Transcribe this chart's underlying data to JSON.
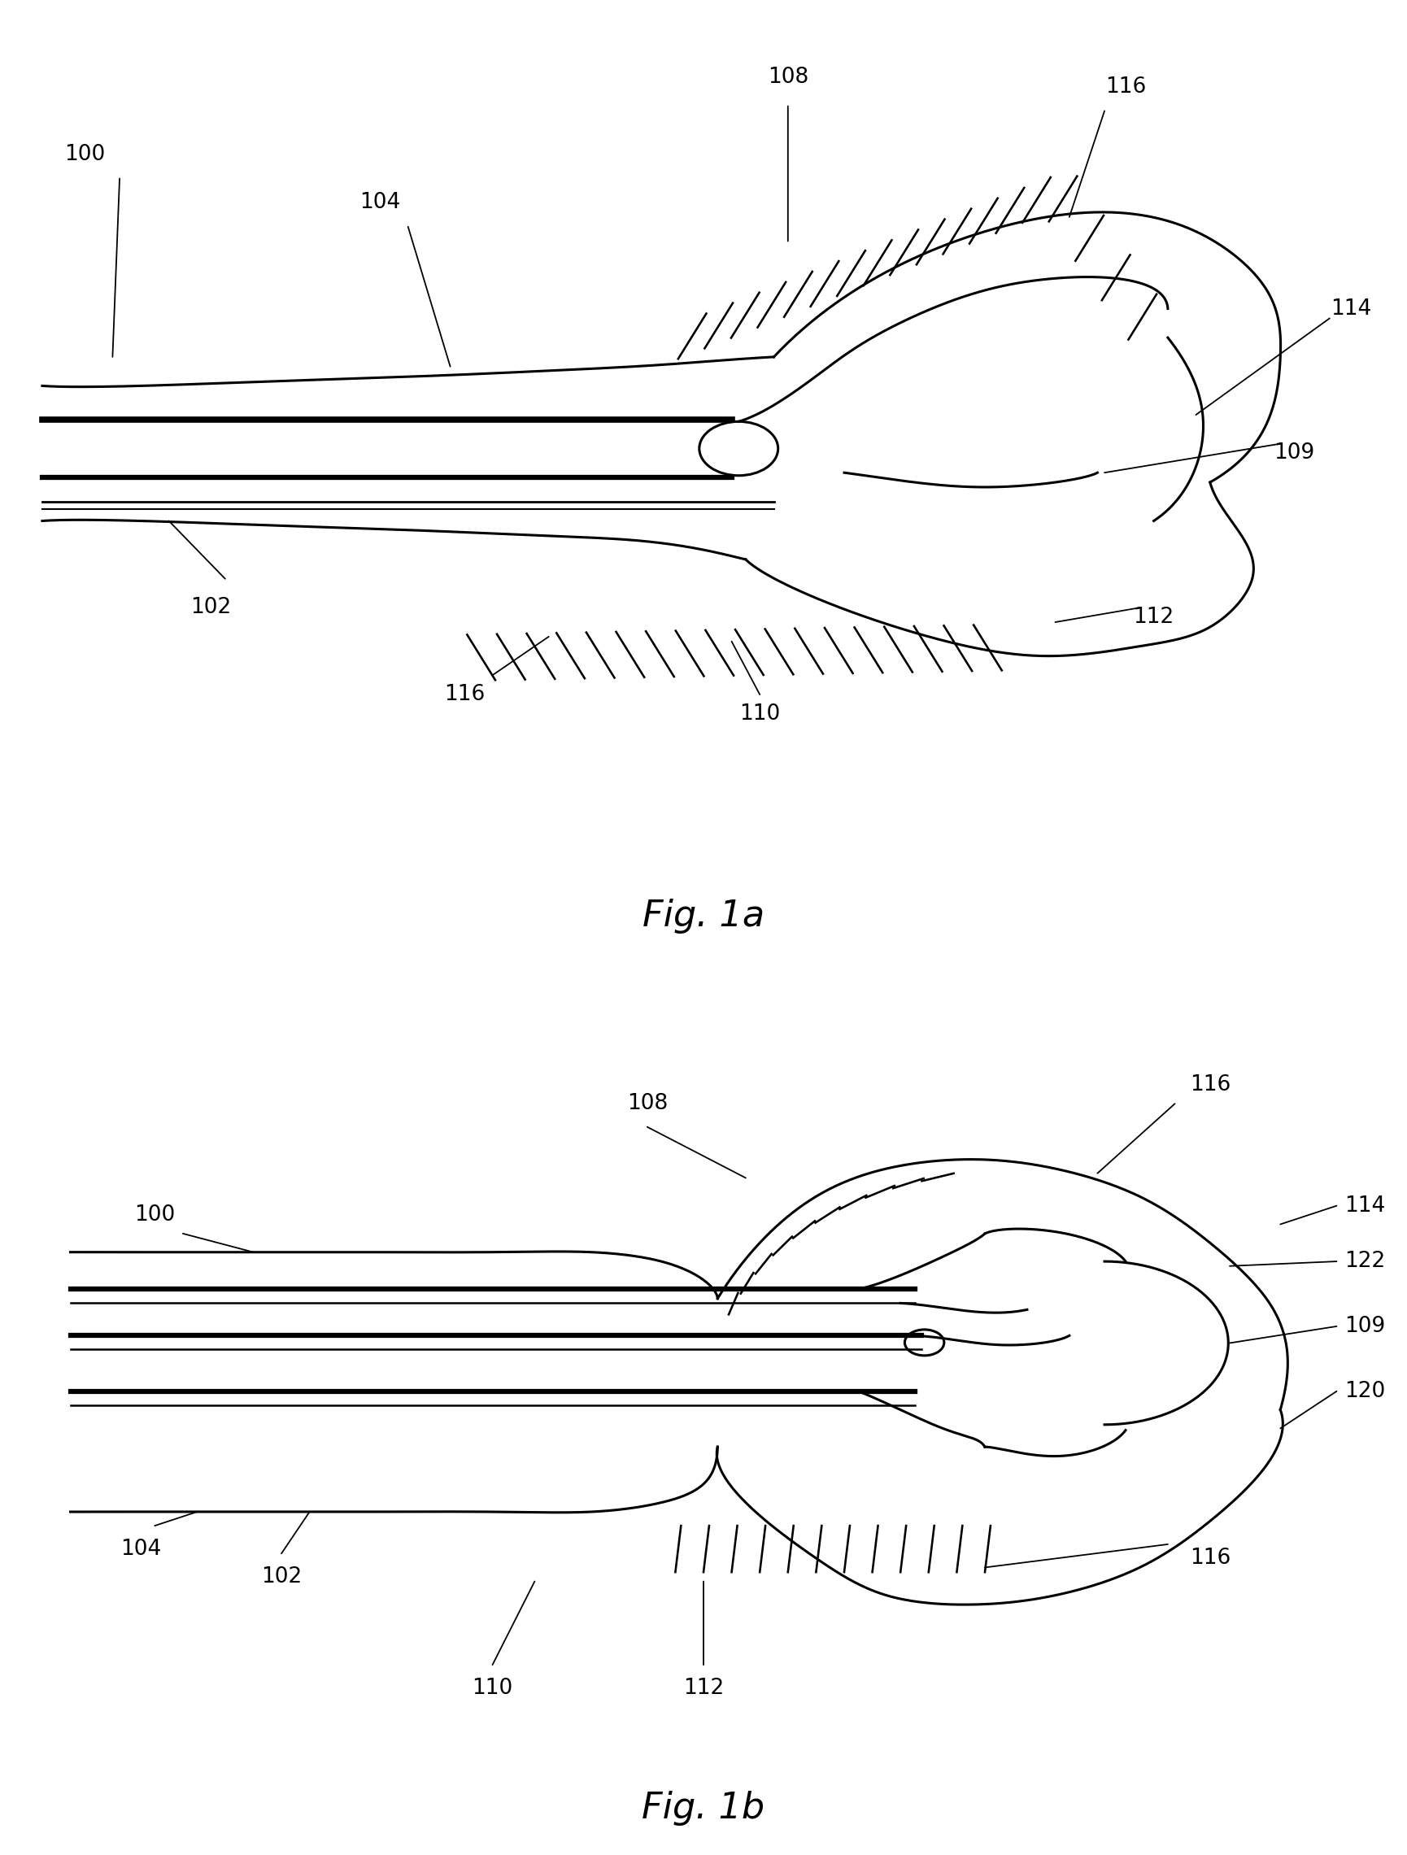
{
  "fig_width": 17.3,
  "fig_height": 22.81,
  "bg_color": "#ffffff",
  "line_color": "#000000",
  "lw": 2.2,
  "lw_thick": 4.5,
  "lw_thin": 1.5,
  "fig1a_caption": "Fig. 1a",
  "fig1b_caption": "Fig. 1b",
  "caption_fontsize": 32,
  "label_fontsize": 19
}
